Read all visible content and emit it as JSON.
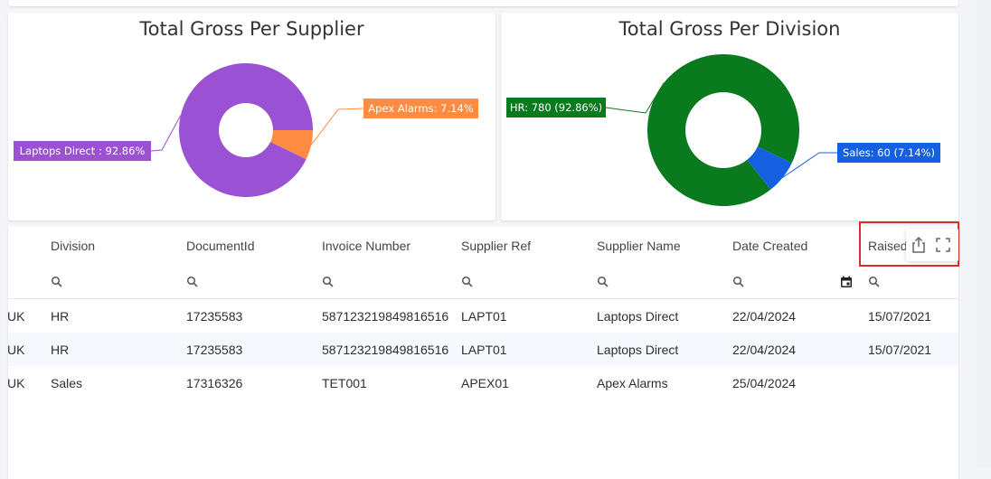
{
  "supplier_chart": {
    "title": "Total Gross Per Supplier",
    "chart_data": {
      "type": "pie",
      "title": "Total Gross Per Supplier",
      "slices": [
        {
          "name": "Laptops Direct",
          "label": "Laptops Direct : 92.86%",
          "value": 92.86,
          "color": "#9b51d4"
        },
        {
          "name": "Apex Alarms",
          "label": "Apex Alarms: 7.14%",
          "value": 7.14,
          "color": "#ff8c42"
        }
      ]
    }
  },
  "division_chart": {
    "title": "Total Gross Per Division",
    "chart_data": {
      "type": "pie",
      "title": "Total Gross Per Division",
      "slices": [
        {
          "name": "HR",
          "label": "HR: 780 (92.86%)",
          "value": 780,
          "color": "#0a7a1e"
        },
        {
          "name": "Sales",
          "label": "Sales: 60 (7.14%)",
          "value": 60,
          "color": "#1560e0"
        }
      ]
    }
  },
  "table": {
    "columns": [
      "Division",
      "DocumentId",
      "Invoice Number",
      "Supplier Ref",
      "Supplier Name",
      "Date Created",
      "Raised"
    ],
    "rows": [
      {
        "prefix": "UK",
        "cells": [
          "HR",
          "17235583",
          "587123219849816516",
          "LAPT01",
          "Laptops Direct",
          "22/04/2024",
          "15/07/2021"
        ]
      },
      {
        "prefix": "UK",
        "cells": [
          "HR",
          "17235583",
          "587123219849816516",
          "LAPT01",
          "Laptops Direct",
          "22/04/2024",
          "15/07/2021"
        ]
      },
      {
        "prefix": "UK",
        "cells": [
          "Sales",
          "17316326",
          "TET001",
          "APEX01",
          "Apex Alarms",
          "25/04/2024",
          ""
        ]
      }
    ]
  },
  "toolbar": {
    "export_icon": "share-export-icon",
    "fullscreen_icon": "fullscreen-icon"
  }
}
